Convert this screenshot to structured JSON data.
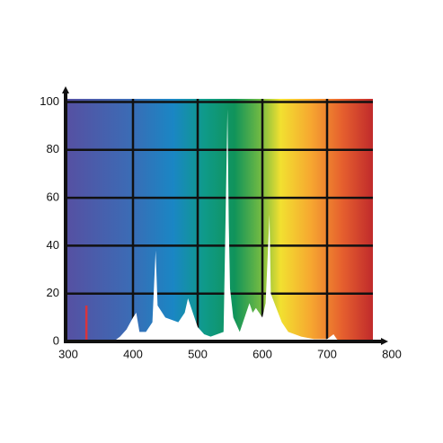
{
  "chart_data": {
    "type": "area",
    "x": [
      370,
      380,
      390,
      400,
      405,
      410,
      420,
      430,
      435,
      438,
      450,
      470,
      480,
      485,
      490,
      500,
      510,
      520,
      540,
      543,
      546,
      548,
      550,
      555,
      565,
      575,
      580,
      585,
      590,
      600,
      605,
      611,
      613,
      620,
      630,
      640,
      660,
      680,
      700,
      710,
      715,
      720
    ],
    "values": [
      0,
      2,
      5,
      10,
      12,
      4,
      4,
      8,
      38,
      15,
      10,
      8,
      12,
      18,
      14,
      6,
      3,
      2,
      4,
      50,
      97,
      50,
      22,
      10,
      4,
      12,
      16,
      12,
      14,
      10,
      16,
      53,
      20,
      15,
      8,
      4,
      2,
      1,
      1,
      3,
      1,
      0
    ],
    "color": "#ffffff",
    "line_x": 328,
    "line_value": 15,
    "line_color": "#d9343c",
    "xlim": [
      300,
      800
    ],
    "ylim": [
      0,
      100
    ],
    "xticks": [
      300,
      400,
      500,
      600,
      700,
      800
    ],
    "yticks": [
      0,
      20,
      40,
      60,
      80,
      100
    ],
    "grid": true
  }
}
